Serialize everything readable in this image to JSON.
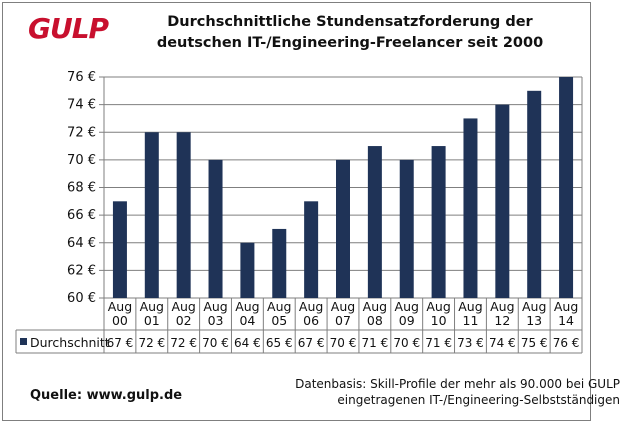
{
  "logo_text": "GULP",
  "title_line1": "Durchschnittliche Stundensatzforderung der",
  "title_line2": "deutschen IT-/Engineering-Freelancer seit 2000",
  "source": "Quelle: www.gulp.de",
  "note_line1": "Datenbasis: Skill-Profile der mehr als 90.000 bei GULP",
  "note_line2": "eingetragenen IT-/Engineering-Selbstständigen",
  "colors": {
    "bar": "#1f3357",
    "grid": "#7f7f7f",
    "logo": "#c8102e"
  },
  "chart_data": {
    "type": "bar",
    "title": "Durchschnittliche Stundensatzforderung der deutschen IT-/Engineering-Freelancer seit 2000",
    "categories": [
      "Aug 00",
      "Aug 01",
      "Aug 02",
      "Aug 03",
      "Aug 04",
      "Aug 05",
      "Aug 06",
      "Aug 07",
      "Aug 08",
      "Aug 09",
      "Aug 10",
      "Aug 11",
      "Aug 12",
      "Aug 13",
      "Aug 14"
    ],
    "category_lines": [
      [
        "Aug",
        "00"
      ],
      [
        "Aug",
        "01"
      ],
      [
        "Aug",
        "02"
      ],
      [
        "Aug",
        "03"
      ],
      [
        "Aug",
        "04"
      ],
      [
        "Aug",
        "05"
      ],
      [
        "Aug",
        "06"
      ],
      [
        "Aug",
        "07"
      ],
      [
        "Aug",
        "08"
      ],
      [
        "Aug",
        "09"
      ],
      [
        "Aug",
        "10"
      ],
      [
        "Aug",
        "11"
      ],
      [
        "Aug",
        "12"
      ],
      [
        "Aug",
        "13"
      ],
      [
        "Aug",
        "14"
      ]
    ],
    "series": [
      {
        "name": "Durchschnitt",
        "values": [
          67,
          72,
          72,
          70,
          64,
          65,
          67,
          70,
          71,
          70,
          71,
          73,
          74,
          75,
          76
        ]
      }
    ],
    "value_labels": [
      "67 €",
      "72 €",
      "72 €",
      "70 €",
      "64 €",
      "65 €",
      "67 €",
      "70 €",
      "71 €",
      "70 €",
      "71 €",
      "73 €",
      "74 €",
      "75 €",
      "76 €"
    ],
    "ylim": [
      60,
      76
    ],
    "yticks": [
      60,
      62,
      64,
      66,
      68,
      70,
      72,
      74,
      76
    ],
    "ytick_labels": [
      "60 €",
      "62 €",
      "64 €",
      "66 €",
      "68 €",
      "70 €",
      "72 €",
      "74 €",
      "76 €"
    ],
    "grid": true,
    "legend": "data-table",
    "xlabel": "",
    "ylabel": ""
  }
}
